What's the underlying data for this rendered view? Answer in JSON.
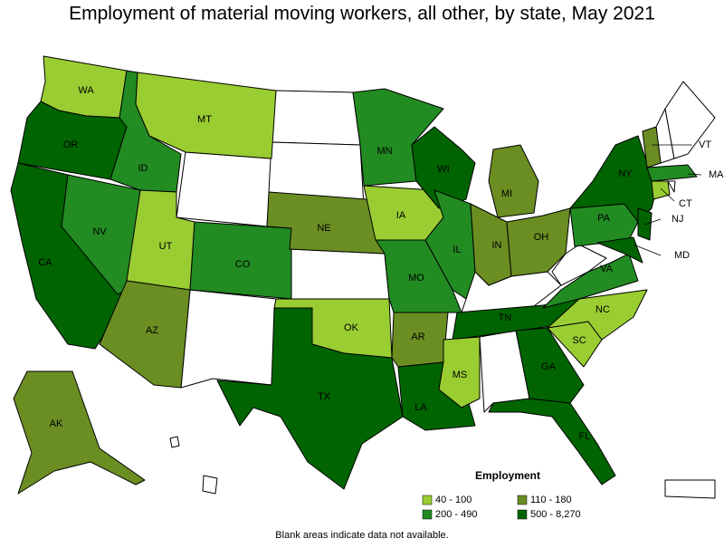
{
  "map": {
    "title": "Employment of material moving workers, all other, by state, May 2021",
    "legend_title": "Employment",
    "legend": [
      {
        "label": "40 - 100",
        "color": "#9acd32"
      },
      {
        "label": "110 - 180",
        "color": "#6b8e23"
      },
      {
        "label": "200 - 490",
        "color": "#228b22"
      },
      {
        "label": "500 - 8,270",
        "color": "#006400"
      }
    ],
    "states": [
      {
        "name": "WA",
        "class": 0
      },
      {
        "name": "OR",
        "class": 3
      },
      {
        "name": "CA",
        "class": 3
      },
      {
        "name": "NV",
        "class": 2
      },
      {
        "name": "ID",
        "class": 2
      },
      {
        "name": "MT",
        "class": 0
      },
      {
        "name": "UT",
        "class": 0
      },
      {
        "name": "AZ",
        "class": 1
      },
      {
        "name": "CO",
        "class": 2
      },
      {
        "name": "NE",
        "class": 1
      },
      {
        "name": "OK",
        "class": 0
      },
      {
        "name": "TX",
        "class": 3
      },
      {
        "name": "MN",
        "class": 2
      },
      {
        "name": "IA",
        "class": 0
      },
      {
        "name": "MO",
        "class": 2
      },
      {
        "name": "AR",
        "class": 1
      },
      {
        "name": "LA",
        "class": 3
      },
      {
        "name": "WI",
        "class": 3
      },
      {
        "name": "IL",
        "class": 2
      },
      {
        "name": "MI",
        "class": 1
      },
      {
        "name": "IN",
        "class": 1
      },
      {
        "name": "OH",
        "class": 1
      },
      {
        "name": "TN",
        "class": 3
      },
      {
        "name": "MS",
        "class": 0
      },
      {
        "name": "GA",
        "class": 3
      },
      {
        "name": "FL",
        "class": 3
      },
      {
        "name": "SC",
        "class": 0
      },
      {
        "name": "NC",
        "class": 0
      },
      {
        "name": "VA",
        "class": 2
      },
      {
        "name": "PA",
        "class": 2
      },
      {
        "name": "NY",
        "class": 3
      },
      {
        "name": "NJ",
        "class": 3
      },
      {
        "name": "MD",
        "class": 3
      },
      {
        "name": "VT",
        "class": 1
      },
      {
        "name": "MA",
        "class": 2
      },
      {
        "name": "CT",
        "class": 0
      },
      {
        "name": "AK",
        "class": 1
      }
    ],
    "footnote": "Blank areas indicate data not available."
  }
}
